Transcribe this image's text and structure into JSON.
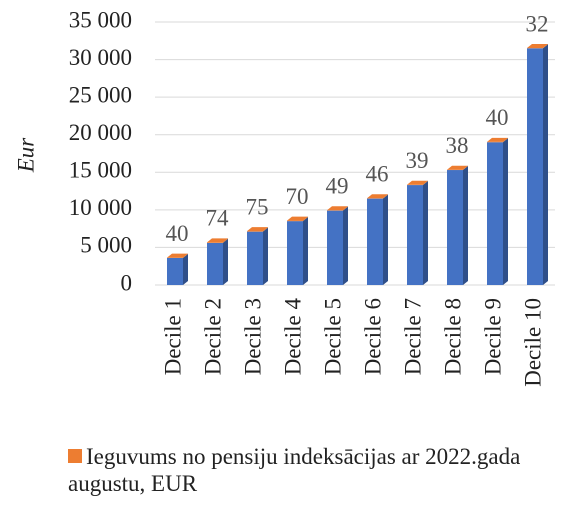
{
  "chart_data": {
    "type": "bar",
    "stacked": true,
    "y_label": "Eur",
    "categories": [
      "Decile 1",
      "Decile 2",
      "Decile 3",
      "Decile 4",
      "Decile 5",
      "Decile 6",
      "Decile 7",
      "Decile 8",
      "Decile 9",
      "Decile 10"
    ],
    "series": [
      {
        "color": "#4472c4",
        "values": [
          3600,
          5600,
          7100,
          8500,
          9900,
          11500,
          13300,
          15300,
          19000,
          31500
        ]
      },
      {
        "name": "Ieguvums no pensiju indeksācijas ar 2022.gada augustu, EUR",
        "color": "#ed7d31",
        "values": [
          40,
          74,
          75,
          70,
          49,
          46,
          39,
          38,
          40,
          32
        ]
      }
    ],
    "ylim": [
      0,
      35000
    ],
    "yticks": [
      0,
      {
        "value": 5000,
        "label": "5 000"
      },
      {
        "value": 10000,
        "label": "10 000"
      },
      {
        "value": 15000,
        "label": "15 000"
      },
      {
        "value": 20000,
        "label": "20 000"
      },
      {
        "value": 25000,
        "label": "25 000"
      },
      {
        "value": 30000,
        "label": "30 000"
      },
      {
        "value": 35000,
        "label": "35 000"
      }
    ],
    "grid": true,
    "legend": "bottom"
  }
}
